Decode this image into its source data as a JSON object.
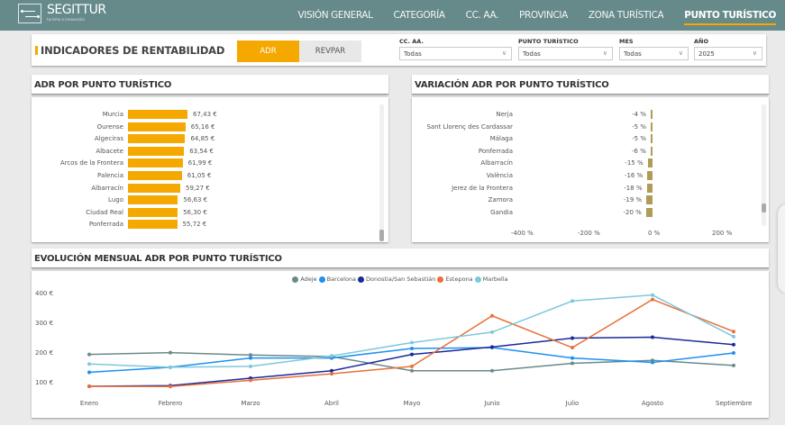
{
  "header": {
    "brand": "SEGITTUR",
    "tagline": "turismo e innovación",
    "nav": [
      {
        "label": "VISIÓN GENERAL",
        "active": false
      },
      {
        "label": "CATEGORÍA",
        "active": false
      },
      {
        "label": "CC. AA.",
        "active": false
      },
      {
        "label": "PROVINCIA",
        "active": false
      },
      {
        "label": "ZONA TURÍSTICA",
        "active": false
      },
      {
        "label": "PUNTO TURÍSTICO",
        "active": true
      }
    ]
  },
  "controls": {
    "title": "INDICADORES DE RENTABILIDAD",
    "toggle": {
      "adr": "ADR",
      "revpar": "REVPAR",
      "selected": "ADR"
    },
    "slicers": [
      {
        "label": "CC. AA.",
        "value": "Todas"
      },
      {
        "label": "PUNTO TURÍSTICO",
        "value": "Todas"
      },
      {
        "label": "MES",
        "value": "Todas"
      },
      {
        "label": "AÑO",
        "value": "2025"
      }
    ],
    "accent": "#f5a800"
  },
  "adr_chart": {
    "title": "ADR POR PUNTO TURÍSTICO",
    "rows": [
      {
        "label": "Murcia",
        "value": 67.43,
        "display": "67,43 €"
      },
      {
        "label": "Ourense",
        "value": 65.16,
        "display": "65,16 €"
      },
      {
        "label": "Algeciras",
        "value": 64.85,
        "display": "64,85 €"
      },
      {
        "label": "Albacete",
        "value": 63.54,
        "display": "63,54 €"
      },
      {
        "label": "Arcos de la Frontera",
        "value": 61.99,
        "display": "61,99 €"
      },
      {
        "label": "Palencia",
        "value": 61.05,
        "display": "61,05 €"
      },
      {
        "label": "Albarracín",
        "value": 59.27,
        "display": "59,27 €"
      },
      {
        "label": "Lugo",
        "value": 56.63,
        "display": "56,63 €"
      },
      {
        "label": "Ciudad Real",
        "value": 56.3,
        "display": "56,30 €"
      },
      {
        "label": "Ponferrada",
        "value": 55.72,
        "display": "55,72 €"
      }
    ]
  },
  "var_chart": {
    "title": "VARIACIÓN ADR POR PUNTO TURÍSTICO",
    "rows": [
      {
        "label": "Nerja",
        "value": -4,
        "display": "-4 %"
      },
      {
        "label": "Sant Llorenç des Cardassar",
        "value": -5,
        "display": "-5 %"
      },
      {
        "label": "Málaga",
        "value": -5,
        "display": "-5 %"
      },
      {
        "label": "Ponferrada",
        "value": -6,
        "display": "-6 %"
      },
      {
        "label": "Albarracín",
        "value": -15,
        "display": "-15 %"
      },
      {
        "label": "València",
        "value": -16,
        "display": "-16 %"
      },
      {
        "label": "Jerez de la Frontera",
        "value": -18,
        "display": "-18 %"
      },
      {
        "label": "Zamora",
        "value": -19,
        "display": "-19 %"
      },
      {
        "label": "Gandia",
        "value": -20,
        "display": "-20 %"
      }
    ],
    "x_ticks": [
      "-400 %",
      "-200 %",
      "0 %",
      "200 %"
    ]
  },
  "line_chart": {
    "title": "EVOLUCIÓN MENSUAL ADR POR PUNTO TURÍSTICO",
    "y_ticks": [
      "400 €",
      "300 €",
      "200 €",
      "100 €"
    ]
  },
  "chart_data": [
    {
      "type": "bar",
      "title": "ADR POR PUNTO TURÍSTICO",
      "orientation": "horizontal",
      "categories": [
        "Murcia",
        "Ourense",
        "Algeciras",
        "Albacete",
        "Arcos de la Frontera",
        "Palencia",
        "Albarracín",
        "Lugo",
        "Ciudad Real",
        "Ponferrada"
      ],
      "values": [
        67.43,
        65.16,
        64.85,
        63.54,
        61.99,
        61.05,
        59.27,
        56.63,
        56.3,
        55.72
      ],
      "unit": "€",
      "color": "#f5a800"
    },
    {
      "type": "bar",
      "title": "VARIACIÓN ADR POR PUNTO TURÍSTICO",
      "orientation": "horizontal",
      "categories": [
        "Nerja",
        "Sant Llorenç des Cardassar",
        "Málaga",
        "Ponferrada",
        "Albarracín",
        "València",
        "Jerez de la Frontera",
        "Zamora",
        "Gandia"
      ],
      "values": [
        -4,
        -5,
        -5,
        -6,
        -15,
        -16,
        -18,
        -19,
        -20
      ],
      "unit": "%",
      "xlim": [
        -400,
        200
      ],
      "x_ticks": [
        -400,
        -200,
        0,
        200
      ],
      "color": "#b09c57"
    },
    {
      "type": "line",
      "title": "EVOLUCIÓN MENSUAL ADR POR PUNTO TURÍSTICO",
      "categories": [
        "Enero",
        "Febrero",
        "Marzo",
        "Abril",
        "Mayo",
        "Junio",
        "Julio",
        "Agosto",
        "Septiembre"
      ],
      "y_ticks": [
        100,
        200,
        300,
        400
      ],
      "ylabel": "€",
      "legend_position": "top",
      "series": [
        {
          "name": "Adeje",
          "color": "#6a8a8a",
          "values": [
            195,
            201,
            193,
            188,
            140,
            140,
            165,
            175,
            158
          ]
        },
        {
          "name": "Barcelona",
          "color": "#1e90f0",
          "values": [
            135,
            152,
            183,
            183,
            215,
            218,
            183,
            168,
            200
          ]
        },
        {
          "name": "Donostia/San Sebastián",
          "color": "#1a2a9a",
          "values": [
            88,
            90,
            115,
            140,
            195,
            220,
            250,
            253,
            228
          ]
        },
        {
          "name": "Estepona",
          "color": "#e8703a",
          "values": [
            88,
            87,
            108,
            130,
            155,
            325,
            218,
            380,
            272
          ]
        },
        {
          "name": "Marbella",
          "color": "#7ec8dc",
          "values": [
            163,
            152,
            155,
            190,
            235,
            270,
            375,
            395,
            255
          ]
        }
      ]
    }
  ]
}
